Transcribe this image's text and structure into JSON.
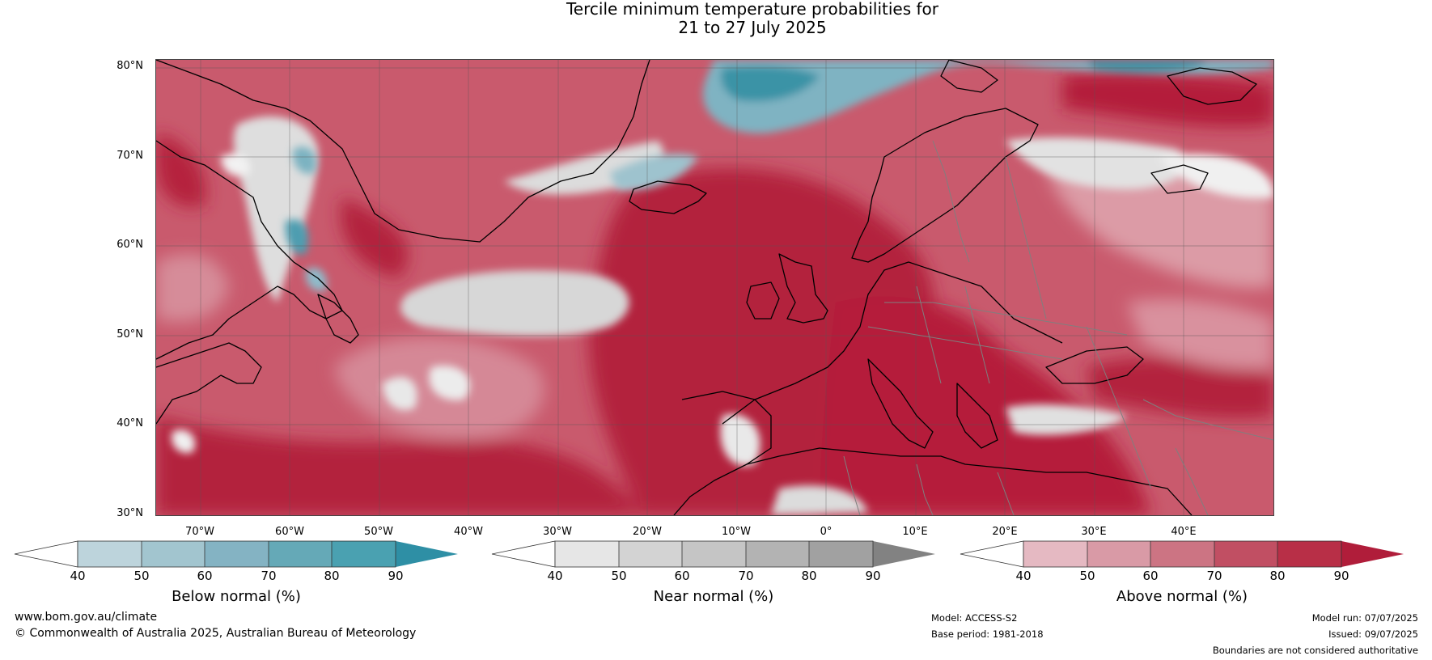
{
  "title": {
    "line1": "Tercile minimum temperature probabilities for",
    "line2": "21 to 27 July 2025"
  },
  "map": {
    "latitude_labels": [
      "80°N",
      "70°N",
      "60°N",
      "50°N",
      "40°N",
      "30°N"
    ],
    "longitude_labels": [
      "70°W",
      "60°W",
      "50°W",
      "40°W",
      "30°W",
      "20°W",
      "10°W",
      "0°",
      "10°E",
      "20°E",
      "30°E",
      "40°E"
    ],
    "colors": {
      "above_dominant": "#b71f3c",
      "near_normal_band": "#d8d8d8",
      "below_normal": "#3b95a8",
      "coastline": "#000000",
      "borders": "#888888"
    }
  },
  "colorbars": [
    {
      "name": "below",
      "title": "Below normal (%)",
      "ticks": [
        "40",
        "50",
        "60",
        "70",
        "80",
        "90"
      ],
      "colors": [
        "#ffffff",
        "#bdd4dc",
        "#a2c5cf",
        "#84b3c3",
        "#65a9b7",
        "#4aa1b1",
        "#2e8fa5"
      ]
    },
    {
      "name": "near",
      "title": "Near normal (%)",
      "ticks": [
        "40",
        "50",
        "60",
        "70",
        "80",
        "90"
      ],
      "colors": [
        "#ffffff",
        "#e6e6e6",
        "#d3d3d3",
        "#c5c5c5",
        "#b3b3b3",
        "#a1a1a1",
        "#828282"
      ]
    },
    {
      "name": "above",
      "title": "Above normal (%)",
      "ticks": [
        "40",
        "50",
        "60",
        "70",
        "80",
        "90"
      ],
      "colors": [
        "#ffffff",
        "#e5b9c2",
        "#d99aa6",
        "#cc7483",
        "#c14f63",
        "#b82f47",
        "#b01d3a"
      ]
    }
  ],
  "footer": {
    "website": "www.bom.gov.au/climate",
    "copyright": "© Commonwealth of Australia 2025, Australian Bureau of Meteorology",
    "model": "Model: ACCESS-S2",
    "base_period": "Base period: 1981-2018",
    "model_run": "Model run: 07/07/2025",
    "issued": "Issued: 09/07/2025",
    "disclaimer": "Boundaries are not considered authoritative"
  }
}
